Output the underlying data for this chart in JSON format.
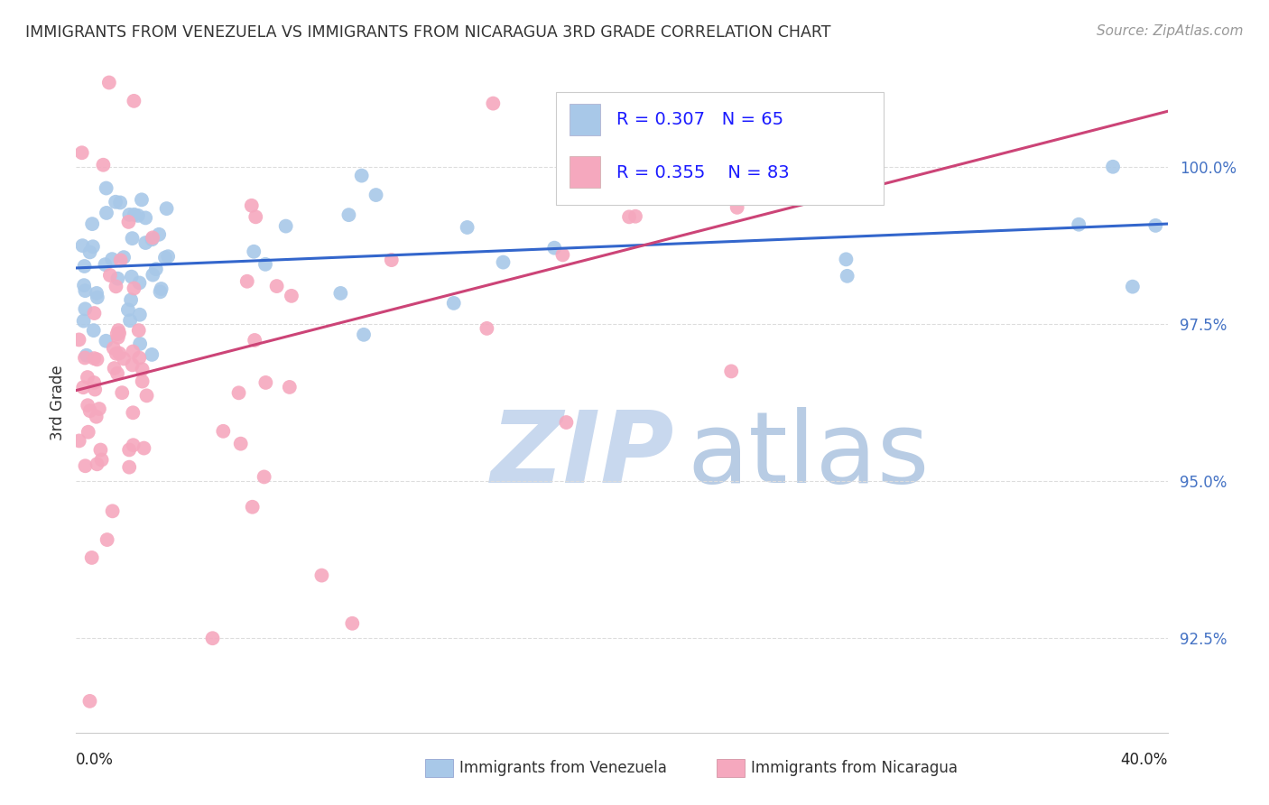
{
  "title": "IMMIGRANTS FROM VENEZUELA VS IMMIGRANTS FROM NICARAGUA 3RD GRADE CORRELATION CHART",
  "source": "Source: ZipAtlas.com",
  "ylabel": "3rd Grade",
  "xlim": [
    0.0,
    0.4
  ],
  "ylim": [
    91.0,
    101.5
  ],
  "series1_label": "Immigrants from Venezuela",
  "series2_label": "Immigrants from Nicaragua",
  "R1": 0.307,
  "N1": 65,
  "R2": 0.355,
  "N2": 83,
  "series1_color": "#a8c8e8",
  "series2_color": "#f5a8be",
  "line1_color": "#3366cc",
  "line2_color": "#cc4477",
  "watermark_zip_color": "#c8d8ee",
  "watermark_atlas_color": "#b8cce4",
  "background_color": "#ffffff",
  "grid_color": "#dddddd",
  "ytick_vals": [
    92.5,
    95.0,
    97.5,
    100.0
  ],
  "ytick_labels": [
    "92.5%",
    "95.0%",
    "97.5%",
    "100.0%"
  ],
  "title_color": "#333333",
  "source_color": "#999999",
  "ylabel_color": "#333333",
  "tick_label_color": "#4472c4",
  "legend_text_color": "#1a1aff"
}
